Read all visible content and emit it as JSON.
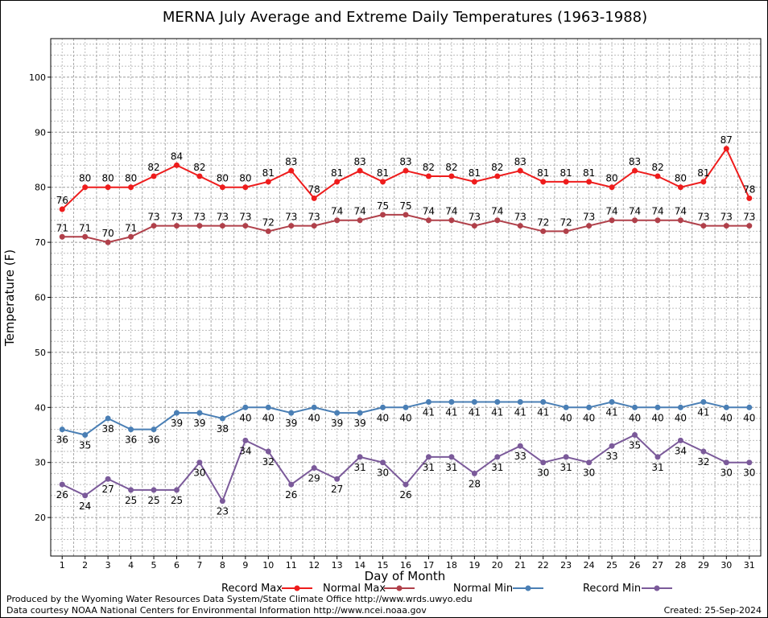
{
  "chart_data": {
    "type": "line",
    "title": "MERNA July Average and Extreme Daily Temperatures (1963-1988)",
    "xlabel": "Day of Month",
    "ylabel": "Temperature (F)",
    "xlim": [
      0.5,
      31.5
    ],
    "ylim": [
      13,
      107
    ],
    "yticks": [
      20,
      30,
      40,
      50,
      60,
      70,
      80,
      90,
      100
    ],
    "x": [
      1,
      2,
      3,
      4,
      5,
      6,
      7,
      8,
      9,
      10,
      11,
      12,
      13,
      14,
      15,
      16,
      17,
      18,
      19,
      20,
      21,
      22,
      23,
      24,
      25,
      26,
      27,
      28,
      29,
      30,
      31
    ],
    "grid": true,
    "legend_position": "bottom",
    "series": [
      {
        "name": "Record Max",
        "color": "#ee1c1c",
        "label_pos": "above",
        "values": [
          76,
          80,
          80,
          80,
          82,
          84,
          82,
          80,
          80,
          81,
          83,
          78,
          81,
          83,
          81,
          83,
          82,
          82,
          81,
          82,
          83,
          81,
          81,
          81,
          80,
          83,
          82,
          80,
          81,
          87,
          78
        ]
      },
      {
        "name": "Normal Max",
        "color": "#b0404a",
        "label_pos": "above",
        "values": [
          71,
          71,
          70,
          71,
          73,
          73,
          73,
          73,
          73,
          72,
          73,
          73,
          74,
          74,
          75,
          75,
          74,
          74,
          73,
          74,
          73,
          72,
          72,
          73,
          74,
          74,
          74,
          74,
          73,
          73,
          73
        ]
      },
      {
        "name": "Normal Min",
        "color": "#4a7fb5",
        "label_pos": "below",
        "values": [
          36,
          35,
          38,
          36,
          36,
          39,
          39,
          38,
          40,
          40,
          39,
          40,
          39,
          39,
          40,
          40,
          41,
          41,
          41,
          41,
          41,
          41,
          40,
          40,
          41,
          40,
          40,
          40,
          41,
          40,
          40
        ]
      },
      {
        "name": "Record Min",
        "color": "#7b5a9a",
        "label_pos": "below",
        "values": [
          26,
          24,
          27,
          25,
          25,
          25,
          30,
          23,
          34,
          32,
          26,
          29,
          27,
          31,
          30,
          26,
          31,
          31,
          28,
          31,
          33,
          30,
          31,
          30,
          33,
          35,
          31,
          34,
          32,
          30,
          30
        ]
      }
    ]
  },
  "footer": {
    "credit_line1": "Produced by the Wyoming Water Resources Data System/State Climate Office http://www.wrds.uwyo.edu",
    "credit_line2": "Data courtesy NOAA National Centers for Environmental Information http://www.ncei.noaa.gov",
    "created": "Created:  25-Sep-2024"
  }
}
